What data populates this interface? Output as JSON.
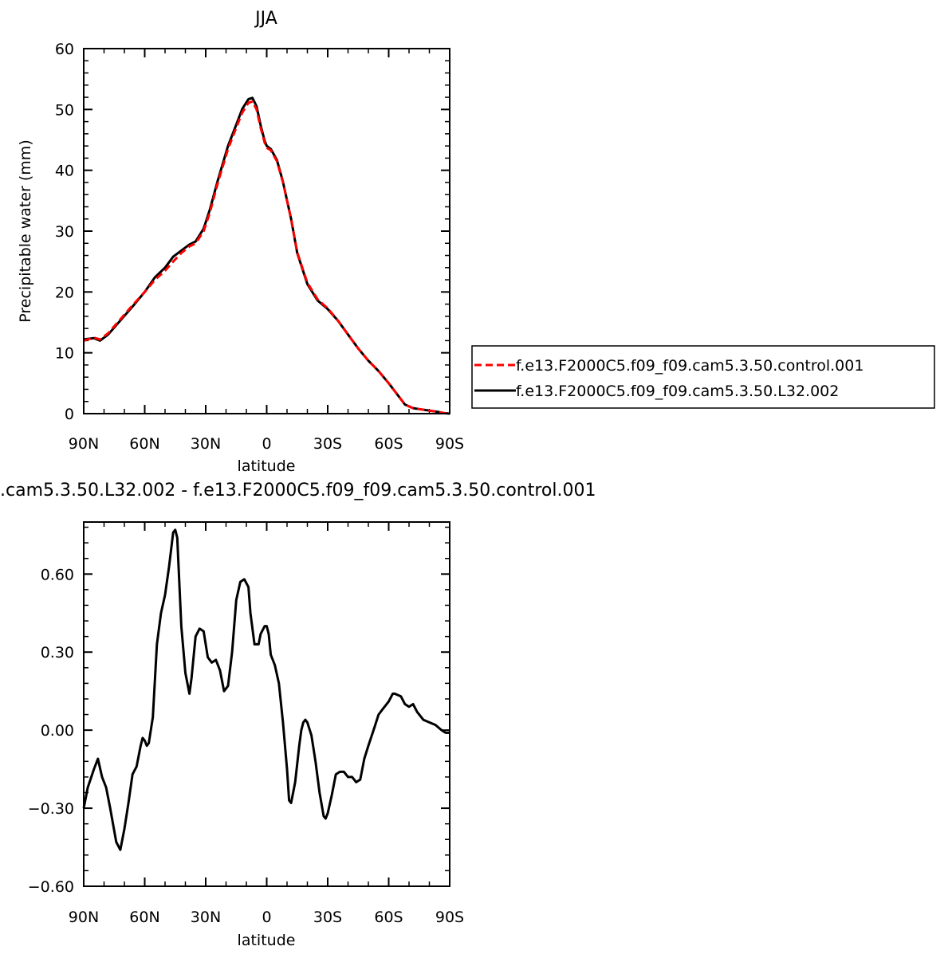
{
  "chart_data": [
    {
      "type": "line",
      "title": "JJA",
      "xlabel": "latitude",
      "ylabel": "Precipitable water (mm)",
      "xlim": [
        90,
        -90
      ],
      "ylim": [
        0,
        60
      ],
      "x_ticks": [
        90,
        60,
        30,
        0,
        -30,
        -60,
        -90
      ],
      "x_tick_labels": [
        "90N",
        "60N",
        "30N",
        "0",
        "30S",
        "60S",
        "90S"
      ],
      "y_ticks": [
        0,
        10,
        20,
        30,
        40,
        50,
        60
      ],
      "y_tick_labels": [
        "0",
        "10",
        "20",
        "30",
        "40",
        "50",
        "60"
      ],
      "series": [
        {
          "name": "f.e13.F2000C5.f09_f09.cam5.3.50.control.001",
          "color": "#ff0000",
          "dash": "dashed",
          "x": [
            90,
            85,
            82,
            78,
            72,
            66,
            60,
            55,
            50,
            46,
            42,
            38,
            35,
            31,
            28,
            24,
            19,
            15,
            12,
            9,
            7,
            5,
            3,
            1,
            0,
            -2,
            -5,
            -8,
            -12,
            -15,
            -20,
            -25,
            -30,
            -35,
            -40,
            -45,
            -50,
            -55,
            -60,
            -65,
            -68,
            -72,
            -76,
            -80,
            -84,
            -87,
            -90
          ],
          "y": [
            12.0,
            12.5,
            12.2,
            13.2,
            15.5,
            17.8,
            20.0,
            22.0,
            23.5,
            25.0,
            26.4,
            27.5,
            28.0,
            30.0,
            33.0,
            38.0,
            43.5,
            47.0,
            49.5,
            51.1,
            51.3,
            50.0,
            47.0,
            44.5,
            43.7,
            43.3,
            41.5,
            38.0,
            32.0,
            26.5,
            21.5,
            18.8,
            17.3,
            15.3,
            13.0,
            10.7,
            8.7,
            7.0,
            5.0,
            2.8,
            1.5,
            0.9,
            0.7,
            0.5,
            0.3,
            0.1,
            0.0
          ]
        },
        {
          "name": "f.e13.F2000C5.f09_f09.cam5.3.50.L32.002",
          "color": "#000000",
          "dash": "solid",
          "x": [
            90,
            85,
            82,
            78,
            72,
            66,
            60,
            55,
            50,
            46,
            42,
            38,
            35,
            31,
            28,
            24,
            19,
            15,
            12,
            9,
            7,
            5,
            3,
            1,
            0,
            -2,
            -5,
            -8,
            -12,
            -15,
            -20,
            -25,
            -30,
            -35,
            -40,
            -45,
            -50,
            -55,
            -60,
            -65,
            -68,
            -72,
            -76,
            -80,
            -84,
            -87,
            -90
          ],
          "y": [
            12.2,
            12.4,
            12.0,
            13.0,
            15.3,
            17.6,
            20.0,
            22.4,
            24.0,
            25.8,
            26.8,
            27.8,
            28.3,
            30.4,
            33.5,
            38.4,
            44.0,
            47.5,
            50.1,
            51.7,
            51.9,
            50.5,
            47.4,
            44.8,
            44.0,
            43.5,
            41.7,
            38.1,
            32.0,
            26.4,
            21.3,
            18.6,
            17.2,
            15.3,
            13.0,
            10.7,
            8.7,
            7.0,
            5.0,
            2.8,
            1.5,
            0.9,
            0.7,
            0.5,
            0.3,
            0.1,
            0.0
          ]
        }
      ],
      "legend_position": "right"
    },
    {
      "type": "line",
      "title": ".cam5.3.50.L32.002 - f.e13.F2000C5.f09_f09.cam5.3.50.control.001",
      "xlabel": "latitude",
      "ylabel": "",
      "xlim": [
        90,
        -90
      ],
      "ylim": [
        -0.6,
        0.8
      ],
      "x_ticks": [
        90,
        60,
        30,
        0,
        -30,
        -60,
        -90
      ],
      "x_tick_labels": [
        "90N",
        "60N",
        "30N",
        "0",
        "30S",
        "60S",
        "90S"
      ],
      "y_ticks": [
        -0.6,
        -0.3,
        0.0,
        0.3,
        0.6
      ],
      "y_tick_labels": [
        "−0.60",
        "−0.30",
        "0.00",
        "0.30",
        "0.60"
      ],
      "series": [
        {
          "color": "#000000",
          "dash": "solid",
          "x": [
            90,
            88,
            85,
            83,
            81,
            79,
            77,
            74,
            72,
            70,
            68,
            66,
            64,
            62,
            61,
            60,
            59,
            58,
            56,
            54,
            52,
            50,
            48,
            46,
            45,
            44,
            42,
            40,
            38,
            37,
            35,
            33,
            31,
            29,
            27,
            25,
            23,
            21,
            19,
            17,
            15,
            13,
            11,
            9,
            8,
            6,
            4,
            3,
            1,
            0,
            -1,
            -2,
            -4,
            -6,
            -8,
            -10,
            -11,
            -12,
            -14,
            -16,
            -17,
            -18,
            -19,
            -20,
            -22,
            -24,
            -26,
            -28,
            -29,
            -30,
            -32,
            -34,
            -36,
            -38,
            -40,
            -42,
            -43,
            -44,
            -46,
            -48,
            -50,
            -53,
            -55,
            -57,
            -60,
            -62,
            -63,
            -66,
            -68,
            -70,
            -72,
            -74,
            -77,
            -80,
            -83,
            -86,
            -88,
            -90
          ],
          "y": [
            -0.3,
            -0.22,
            -0.15,
            -0.11,
            -0.18,
            -0.22,
            -0.3,
            -0.43,
            -0.46,
            -0.38,
            -0.28,
            -0.17,
            -0.14,
            -0.06,
            -0.03,
            -0.04,
            -0.06,
            -0.05,
            0.05,
            0.33,
            0.45,
            0.52,
            0.63,
            0.76,
            0.77,
            0.74,
            0.4,
            0.22,
            0.14,
            0.2,
            0.36,
            0.39,
            0.38,
            0.28,
            0.26,
            0.27,
            0.23,
            0.15,
            0.17,
            0.3,
            0.5,
            0.57,
            0.58,
            0.55,
            0.45,
            0.33,
            0.33,
            0.37,
            0.4,
            0.4,
            0.37,
            0.29,
            0.25,
            0.18,
            0.03,
            -0.15,
            -0.27,
            -0.28,
            -0.2,
            -0.06,
            0.0,
            0.03,
            0.04,
            0.03,
            -0.02,
            -0.12,
            -0.24,
            -0.33,
            -0.34,
            -0.32,
            -0.25,
            -0.17,
            -0.16,
            -0.16,
            -0.18,
            -0.18,
            -0.19,
            -0.2,
            -0.19,
            -0.11,
            -0.06,
            0.01,
            0.06,
            0.08,
            0.11,
            0.14,
            0.14,
            0.13,
            0.1,
            0.09,
            0.1,
            0.07,
            0.04,
            0.03,
            0.02,
            0.0,
            -0.01,
            -0.01
          ]
        }
      ]
    }
  ]
}
